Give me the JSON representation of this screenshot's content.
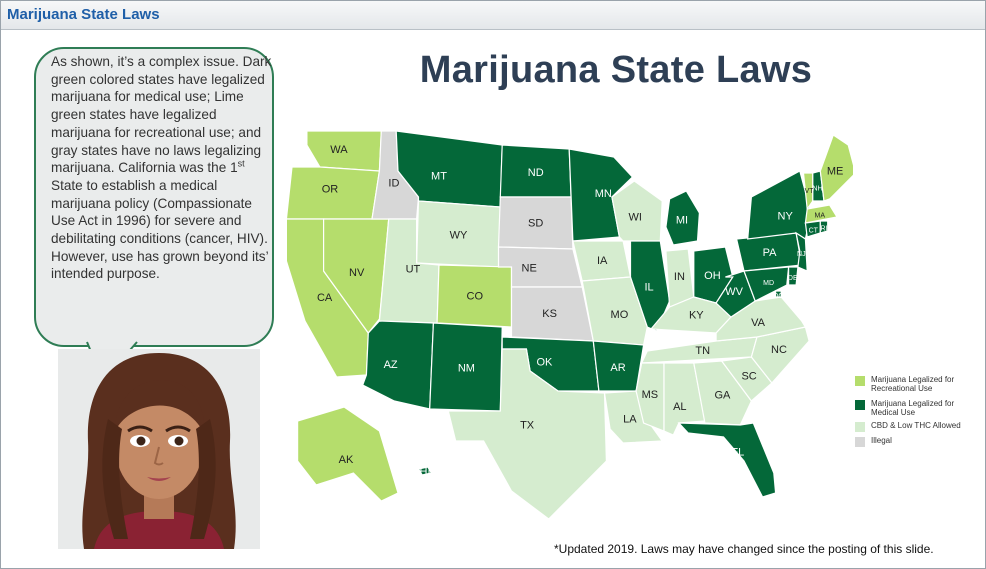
{
  "header": {
    "title": "Marijuana State Laws"
  },
  "slide": {
    "title": "Marijuana State Laws",
    "bubble": {
      "line_1": "As shown, it’s a complex issue. Dark green colored states have legalized marijuana for medical use; Lime green states have legalized marijuana for recreational use; and gray states have no laws legalizing marijuana. California was the 1",
      "sup": "st",
      "line_2": " State to establish a medical marijuana policy (Compassionate Use Act in 1996) for severe and debilitating conditions (cancer, HIV). However, use has grown beyond its’ intended purpose."
    },
    "footnote": "*Updated 2019. Laws may have changed since the posting of this slide."
  },
  "colors": {
    "recreational": "#b5dd6c",
    "medical": "#046839",
    "cbd": "#d5eccf",
    "illegal": "#d7d7d7",
    "title": "#2e3f55",
    "header_text": "#1f5fa8",
    "bubble_border": "#2f7d55"
  },
  "legend": [
    {
      "label": "Marijuana Legalized for Recreational Use",
      "category": "recreational"
    },
    {
      "label": "Marijuana Legalized for Medical Use",
      "category": "medical"
    },
    {
      "label": "CBD & Low THC Allowed",
      "category": "cbd"
    },
    {
      "label": "Illegal",
      "category": "illegal"
    }
  ],
  "states": {
    "WA": "recreational",
    "OR": "recreational",
    "CA": "recreational",
    "NV": "recreational",
    "CO": "recreational",
    "AK": "recreational",
    "ME": "recreational",
    "VT": "recreational",
    "MA": "recreational",
    "MT": "medical",
    "ND": "medical",
    "MN": "medical",
    "AZ": "medical",
    "NM": "medical",
    "OK": "medical",
    "AR": "medical",
    "IL": "medical",
    "MI": "medical",
    "OH": "medical",
    "WV": "medical",
    "PA": "medical",
    "NY": "medical",
    "NJ": "medical",
    "DE": "medical",
    "MD": "medical",
    "DC": "medical",
    "CT": "medical",
    "RI": "medical",
    "NH": "medical",
    "FL": "medical",
    "HI": "medical",
    "ID": "illegal",
    "SD": "illegal",
    "NE": "illegal",
    "KS": "illegal",
    "WY": "cbd",
    "UT": "cbd",
    "TX": "cbd",
    "IA": "cbd",
    "WI": "cbd",
    "MO": "cbd",
    "IN": "cbd",
    "KY": "cbd",
    "TN": "cbd",
    "MS": "cbd",
    "AL": "cbd",
    "GA": "cbd",
    "SC": "cbd",
    "NC": "cbd",
    "VA": "cbd",
    "LA": "cbd"
  }
}
